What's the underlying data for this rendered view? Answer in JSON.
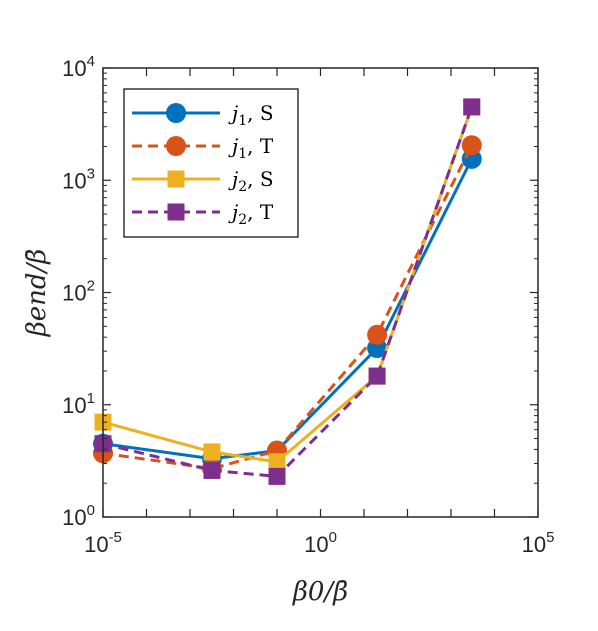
{
  "chart_data": {
    "type": "line",
    "xscale": "log",
    "yscale": "log",
    "xlim": [
      1e-05,
      100000
    ],
    "ylim": [
      1,
      10000
    ],
    "x_ticks": [
      {
        "value": 1e-05,
        "base": "10",
        "exp": "-5"
      },
      {
        "value": 1,
        "base": "10",
        "exp": "0"
      },
      {
        "value": 100000,
        "base": "10",
        "exp": "5"
      }
    ],
    "y_ticks": [
      {
        "value": 1,
        "base": "10",
        "exp": "0"
      },
      {
        "value": 10,
        "base": "10",
        "exp": "1"
      },
      {
        "value": 100,
        "base": "10",
        "exp": "2"
      },
      {
        "value": 1000,
        "base": "10",
        "exp": "3"
      },
      {
        "value": 10000,
        "base": "10",
        "exp": "4"
      }
    ],
    "xlabel": "β0/β̄",
    "ylabel": "βend/β̄",
    "grid": false,
    "legend_position": "top-left",
    "x": [
      1e-05,
      0.0032,
      0.1,
      20,
      3000
    ],
    "series": [
      {
        "name": "j1, S",
        "var": "j",
        "sub": "1",
        "suffix": ", S",
        "color": "#0072BD",
        "dash": "solid",
        "marker": "circle",
        "values": [
          4.5,
          3.3,
          3.9,
          32,
          1550
        ]
      },
      {
        "name": "j1, T",
        "var": "j",
        "sub": "1",
        "suffix": ", T",
        "color": "#D95319",
        "dash": "dashed",
        "marker": "circle",
        "values": [
          3.7,
          2.7,
          3.9,
          42,
          2050
        ]
      },
      {
        "name": "j2, S",
        "var": "j",
        "sub": "2",
        "suffix": ", S",
        "color": "#EDB120",
        "dash": "solid",
        "marker": "square",
        "values": [
          7.0,
          3.8,
          3.1,
          18,
          4500
        ]
      },
      {
        "name": "j2, T",
        "var": "j",
        "sub": "2",
        "suffix": ", T",
        "color": "#7E2F8E",
        "dash": "dashed",
        "marker": "square",
        "values": [
          4.5,
          2.6,
          2.3,
          18,
          4500
        ]
      }
    ]
  }
}
